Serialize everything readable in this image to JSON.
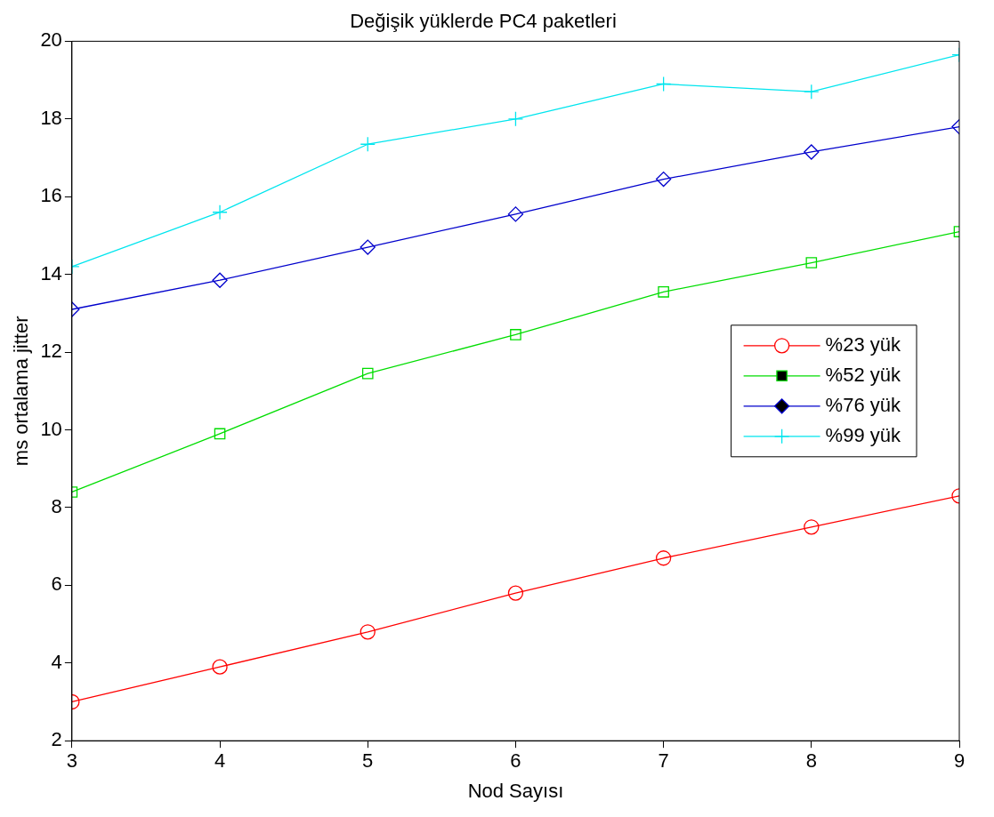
{
  "chart_data": {
    "type": "line",
    "title": "Değişik yüklerde PC4 paketleri",
    "xlabel": "Nod Sayısı",
    "ylabel": "ms ortalama jitter",
    "x": [
      3,
      4,
      5,
      6,
      7,
      8,
      9
    ],
    "series": [
      {
        "name": "%23 yük",
        "color": "#ff0000",
        "marker": "circle",
        "values": [
          3.0,
          3.9,
          4.8,
          5.8,
          6.7,
          7.5,
          8.3
        ]
      },
      {
        "name": "%52 yük",
        "color": "#00dd00",
        "marker": "square",
        "values": [
          8.4,
          9.9,
          11.45,
          12.45,
          13.55,
          14.3,
          15.1
        ]
      },
      {
        "name": "%76 yük",
        "color": "#0000cc",
        "marker": "diamond",
        "values": [
          13.1,
          13.85,
          14.7,
          15.55,
          16.45,
          17.15,
          17.8
        ]
      },
      {
        "name": "%99 yük",
        "color": "#00e5ee",
        "marker": "cross",
        "values": [
          14.2,
          15.6,
          17.35,
          18.0,
          18.9,
          18.7,
          19.65
        ]
      }
    ],
    "xlim": [
      3,
      9
    ],
    "xticks": [
      3,
      4,
      5,
      6,
      7,
      8,
      9
    ],
    "ylim": [
      2,
      20
    ],
    "yticks": [
      2,
      4,
      6,
      8,
      10,
      12,
      14,
      16,
      18,
      20
    ],
    "grid": false,
    "legend": "right",
    "line_style": "solid"
  }
}
